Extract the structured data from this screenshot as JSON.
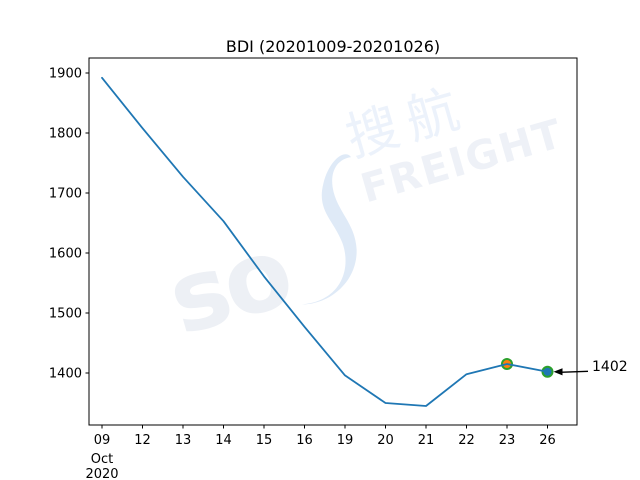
{
  "chart_data": {
    "type": "line",
    "title": "BDI (20201009-20201026)",
    "categories": [
      "09",
      "12",
      "13",
      "14",
      "15",
      "16",
      "19",
      "20",
      "21",
      "22",
      "23",
      "26"
    ],
    "x_sublabel_lines": [
      "Oct",
      "2020"
    ],
    "values": [
      1892,
      1808,
      1727,
      1653,
      1561,
      1477,
      1396,
      1350,
      1345,
      1398,
      1415,
      1402
    ],
    "yticks": [
      1400,
      1500,
      1600,
      1700,
      1800,
      1900
    ],
    "ylim": [
      1313,
      1925
    ],
    "xlabel": "",
    "ylabel": "",
    "grid": false,
    "legend": null,
    "line_color": "#1f77b4",
    "axis_color": "#000000",
    "markers": [
      {
        "index": 10,
        "fill": "#ff7f0e",
        "edge": "#2ca02c"
      },
      {
        "index": 11,
        "fill": "#1f77b4",
        "edge": "#2ca02c"
      }
    ],
    "annotation": {
      "text": "1402",
      "point_index": 11
    }
  },
  "watermark": {
    "letters": "so",
    "cn": "搜航",
    "en": "FREIGHT",
    "swoosh_color": "#dfeaf7"
  }
}
